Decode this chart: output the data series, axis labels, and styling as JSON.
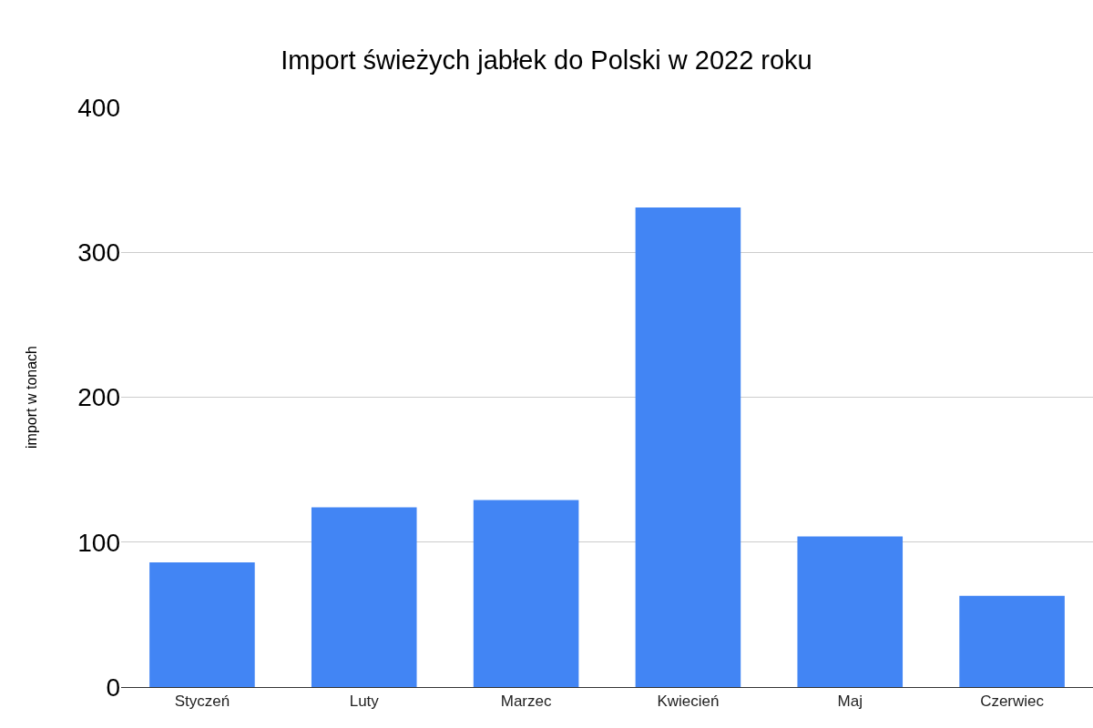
{
  "chart_data": {
    "type": "bar",
    "title": "Import świeżych jabłek do Polski w 2022 roku",
    "ylabel": "import w tonach",
    "categories": [
      "Styczeń",
      "Luty",
      "Marzec",
      "Kwiecień",
      "Maj",
      "Czerwiec"
    ],
    "values": [
      86,
      124,
      129,
      331,
      104,
      63
    ],
    "color": "#4285f4",
    "ylim": [
      0,
      400
    ],
    "yticks": [
      0,
      100,
      200,
      300,
      400
    ],
    "grid": "y"
  }
}
